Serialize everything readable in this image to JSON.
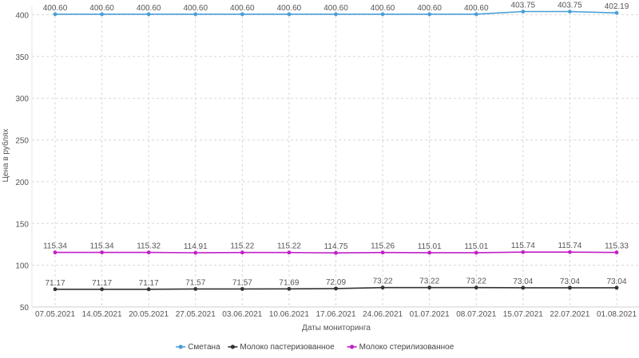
{
  "chart_data": {
    "type": "line",
    "title": "",
    "xlabel": "Даты мониторинга",
    "ylabel": "Цена в рублях",
    "ylim": [
      50,
      410
    ],
    "yticks": [
      50,
      100,
      150,
      200,
      250,
      300,
      350,
      400
    ],
    "grid": true,
    "legend_position": "bottom",
    "categories": [
      "07.05.2021",
      "14.05.2021",
      "20.05.2021",
      "27.05.2021",
      "03.06.2021",
      "10.06.2021",
      "17.06.2021",
      "24.06.2021",
      "01.07.2021",
      "08.07.2021",
      "15.07.2021",
      "22.07.2021",
      "01.08.2021"
    ],
    "series": [
      {
        "name": "Сметана",
        "color": "#4a9fd8",
        "values": [
          400.6,
          400.6,
          400.6,
          400.6,
          400.6,
          400.6,
          400.6,
          400.6,
          400.6,
          400.6,
          403.75,
          403.75,
          402.19
        ],
        "labels": [
          "400.60",
          "400.60",
          "400.60",
          "400.60",
          "400.60",
          "400.60",
          "400.60",
          "400.60",
          "400.60",
          "400.60",
          "403.75",
          "403.75",
          "402.19"
        ]
      },
      {
        "name": "Молоко пастеризованное",
        "color": "#333333",
        "values": [
          71.17,
          71.17,
          71.17,
          71.57,
          71.57,
          71.69,
          72.09,
          73.22,
          73.22,
          73.22,
          73.04,
          73.04,
          73.04
        ],
        "labels": [
          "71.17",
          "71.17",
          "71.17",
          "71.57",
          "71.57",
          "71.69",
          "72.09",
          "73.22",
          "73.22",
          "73.22",
          "73.04",
          "73.04",
          "73.04"
        ]
      },
      {
        "name": "Молоко стерилизованное",
        "color": "#c020c8",
        "values": [
          115.34,
          115.34,
          115.32,
          114.91,
          115.22,
          115.22,
          114.75,
          115.26,
          115.01,
          115.01,
          115.74,
          115.74,
          115.33
        ],
        "labels": [
          "115.34",
          "115.34",
          "115.32",
          "114.91",
          "115.22",
          "115.22",
          "114.75",
          "115.26",
          "115.01",
          "115.01",
          "115.74",
          "115.74",
          "115.33"
        ]
      }
    ]
  }
}
